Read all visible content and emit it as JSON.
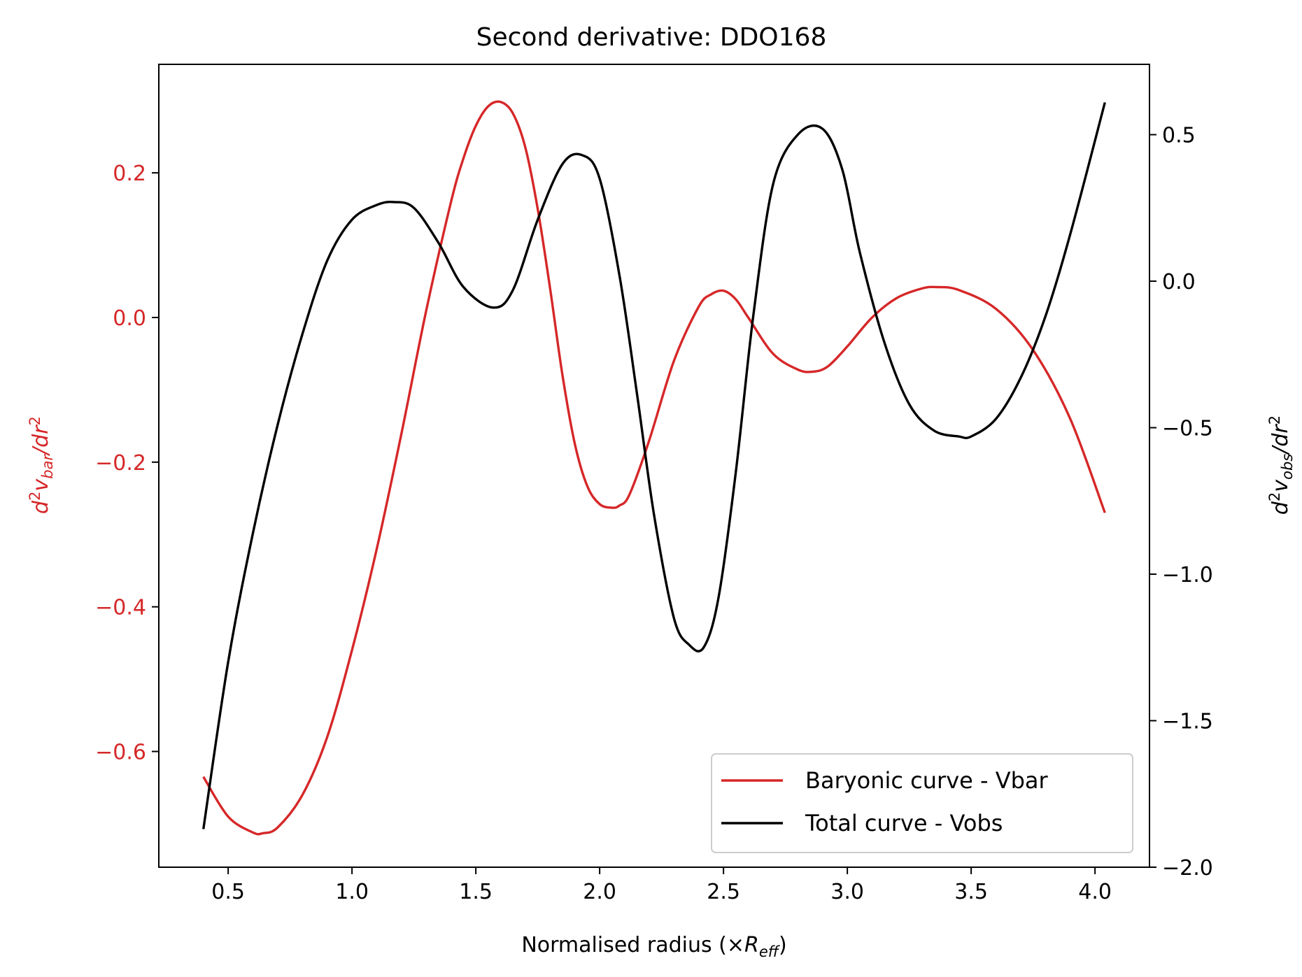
{
  "chart_data": {
    "type": "line",
    "title": "Second derivative: DDO168",
    "xlabel": "Normalised radius (×R_eff)",
    "xlabel_parts": {
      "main": "Normalised radius (×",
      "sym": "R",
      "sub": "eff",
      "close": ")"
    },
    "ylabel_left_parts": {
      "d": "d",
      "sup1": "2",
      "v": "v",
      "sub": "bar",
      "mid": "/dr",
      "sup2": "2"
    },
    "ylabel_right_parts": {
      "d": "d",
      "sup1": "2",
      "v": "v",
      "sub": "obs",
      "mid": "/dr",
      "sup2": "2"
    },
    "xlim": [
      0.22,
      4.22
    ],
    "ylim_left": [
      -0.76,
      0.35
    ],
    "ylim_right": [
      -2.0,
      0.74
    ],
    "xticks": [
      0.5,
      1.0,
      1.5,
      2.0,
      2.5,
      3.0,
      3.5,
      4.0
    ],
    "xtick_labels": [
      "0.5",
      "1.0",
      "1.5",
      "2.0",
      "2.5",
      "3.0",
      "3.5",
      "4.0"
    ],
    "yticks_left": [
      -0.6,
      -0.4,
      -0.2,
      0.0,
      0.2
    ],
    "ytick_labels_left": [
      "−0.6",
      "−0.4",
      "−0.2",
      "0.0",
      "0.2"
    ],
    "yticks_right": [
      -2.0,
      -1.5,
      -1.0,
      -0.5,
      0.0,
      0.5
    ],
    "ytick_labels_right": [
      "−2.0",
      "−1.5",
      "−1.0",
      "−0.5",
      "0.0",
      "0.5"
    ],
    "grid": false,
    "legend_position": "bottom-right",
    "series": [
      {
        "name": "Baryonic curve - Vbar",
        "axis": "left",
        "color": "#d62728",
        "x": [
          0.4,
          0.5,
          0.6,
          0.64,
          0.7,
          0.8,
          0.9,
          1.0,
          1.1,
          1.2,
          1.3,
          1.4,
          1.45,
          1.5,
          1.55,
          1.6,
          1.65,
          1.7,
          1.75,
          1.8,
          1.85,
          1.9,
          1.95,
          2.0,
          2.05,
          2.08,
          2.12,
          2.2,
          2.3,
          2.4,
          2.45,
          2.5,
          2.55,
          2.6,
          2.7,
          2.8,
          2.86,
          2.92,
          3.0,
          3.1,
          3.2,
          3.3,
          3.36,
          3.45,
          3.6,
          3.75,
          3.9,
          4.04
        ],
        "y": [
          -0.635,
          -0.69,
          -0.712,
          -0.713,
          -0.705,
          -0.66,
          -0.58,
          -0.46,
          -0.32,
          -0.16,
          0.01,
          0.16,
          0.22,
          0.265,
          0.292,
          0.298,
          0.282,
          0.235,
          0.15,
          0.04,
          -0.08,
          -0.175,
          -0.233,
          -0.258,
          -0.263,
          -0.26,
          -0.245,
          -0.17,
          -0.06,
          0.015,
          0.032,
          0.037,
          0.025,
          0.0,
          -0.05,
          -0.072,
          -0.075,
          -0.068,
          -0.04,
          0.0,
          0.027,
          0.04,
          0.042,
          0.038,
          0.012,
          -0.045,
          -0.14,
          -0.27
        ]
      },
      {
        "name": "Total curve - Vobs",
        "axis": "right",
        "color": "#000000",
        "x": [
          0.4,
          0.5,
          0.6,
          0.7,
          0.8,
          0.9,
          1.0,
          1.1,
          1.17,
          1.25,
          1.35,
          1.45,
          1.57,
          1.65,
          1.75,
          1.85,
          1.93,
          2.0,
          2.08,
          2.15,
          2.22,
          2.3,
          2.36,
          2.42,
          2.48,
          2.55,
          2.62,
          2.7,
          2.8,
          2.9,
          2.98,
          3.05,
          3.15,
          3.25,
          3.35,
          3.45,
          3.5,
          3.6,
          3.7,
          3.8,
          3.9,
          4.04
        ],
        "y": [
          -1.87,
          -1.3,
          -0.86,
          -0.49,
          -0.18,
          0.07,
          0.21,
          0.26,
          0.27,
          0.25,
          0.13,
          -0.02,
          -0.09,
          -0.03,
          0.21,
          0.4,
          0.43,
          0.35,
          0.02,
          -0.38,
          -0.8,
          -1.15,
          -1.24,
          -1.25,
          -1.08,
          -0.65,
          -0.12,
          0.33,
          0.5,
          0.52,
          0.38,
          0.1,
          -0.21,
          -0.42,
          -0.51,
          -0.53,
          -0.53,
          -0.47,
          -0.33,
          -0.12,
          0.16,
          0.61
        ]
      }
    ]
  }
}
